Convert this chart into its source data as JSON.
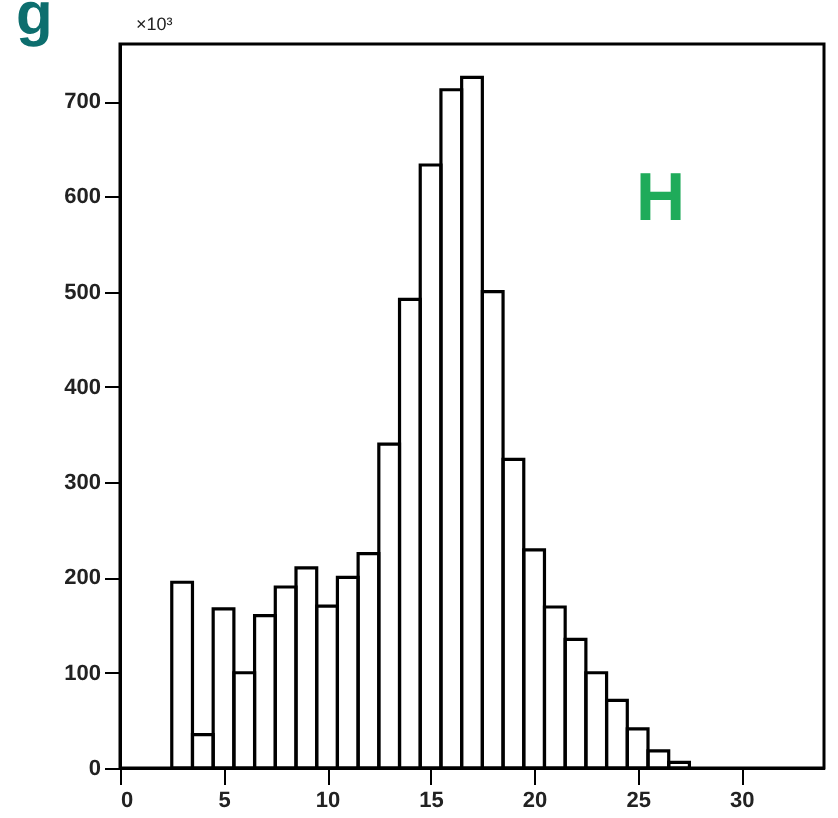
{
  "chart_data": {
    "type": "histogram",
    "bins": [
      2.5,
      3.5,
      4.5,
      5.5,
      6.5,
      7.5,
      8.5,
      9.5,
      10.5,
      11.5,
      12.5,
      13.5,
      14.5,
      15.5,
      16.5,
      17.5,
      18.5,
      19.5,
      20.5,
      21.5,
      22.5,
      23.5,
      24.5,
      25.5,
      26.5,
      27.5
    ],
    "values": [
      195,
      35,
      167,
      100,
      160,
      190,
      210,
      170,
      200,
      225,
      340,
      492,
      633,
      712,
      725,
      500,
      324,
      229,
      169,
      135,
      100,
      71,
      41,
      18,
      6
    ],
    "color": "#000000",
    "xlim": [
      0,
      34
    ],
    "xticks": [
      0,
      5,
      10,
      15,
      20,
      25,
      30
    ],
    "ylim": [
      0,
      760
    ],
    "yticks": [
      0,
      100,
      200,
      300,
      400,
      500,
      600,
      700
    ],
    "annotations": [
      "g",
      "×10³",
      "H"
    ],
    "grid": false
  }
}
